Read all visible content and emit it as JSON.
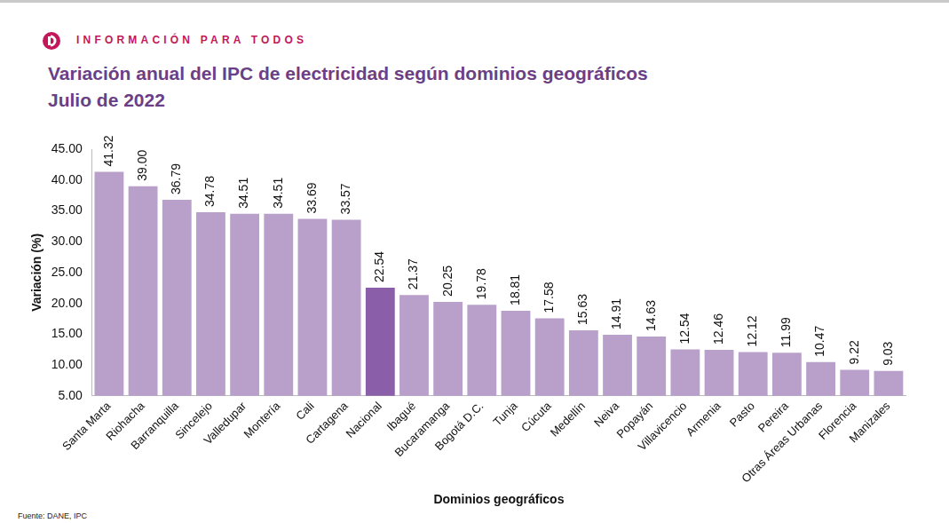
{
  "header": "INFORMACIÓN PARA TODOS",
  "source": "Fuente: DANE, IPC",
  "chart_data": {
    "type": "bar",
    "title": "Variación anual del IPC de electricidad según dominios geográficos",
    "subtitle": "Julio de 2022",
    "x_label": "Dominios geográficos",
    "y_label": "Variación (%)",
    "categories": [
      "Santa Marta",
      "Riohacha",
      "Barranquilla",
      "Sincelejo",
      "Valledupar",
      "Montería",
      "Cali",
      "Cartagena",
      "Nacional",
      "Ibagué",
      "Bucaramanga",
      "Bogotá D.C.",
      "Tunja",
      "Cúcuta",
      "Medellín",
      "Neiva",
      "Popayán",
      "Villavicencio",
      "Armenia",
      "Pasto",
      "Pereira",
      "Otras Áreas Urbanas",
      "Florencia",
      "Manizales"
    ],
    "values": [
      41.32,
      39.0,
      36.79,
      34.78,
      34.51,
      34.51,
      33.69,
      33.57,
      22.54,
      21.37,
      20.25,
      19.78,
      18.81,
      17.58,
      15.63,
      14.91,
      14.63,
      12.54,
      12.46,
      12.12,
      11.99,
      10.47,
      9.22,
      9.03
    ],
    "value_labels": [
      "41.32",
      "39.00",
      "36.79",
      "34.78",
      "34.51",
      "34.51",
      "33.69",
      "33.57",
      "22.54",
      "21.37",
      "20.25",
      "19.78",
      "18.81",
      "17.58",
      "15.63",
      "14.91",
      "14.63",
      "12.54",
      "12.46",
      "12.12",
      "11.99",
      "10.47",
      "9.22",
      "9.03"
    ],
    "colors": [
      "#b9a0cb",
      "#b9a0cb",
      "#b9a0cb",
      "#b9a0cb",
      "#b9a0cb",
      "#b9a0cb",
      "#b9a0cb",
      "#b9a0cb",
      "#8a5ea8",
      "#b9a0cb",
      "#b9a0cb",
      "#b9a0cb",
      "#b9a0cb",
      "#b9a0cb",
      "#b9a0cb",
      "#b9a0cb",
      "#b9a0cb",
      "#b9a0cb",
      "#b9a0cb",
      "#b9a0cb",
      "#b9a0cb",
      "#b9a0cb",
      "#b9a0cb",
      "#b9a0cb"
    ],
    "ylim": [
      5,
      45
    ],
    "yticks": [
      {
        "value": 5,
        "label": "5.00"
      },
      {
        "value": 10,
        "label": "10.00"
      },
      {
        "value": 15,
        "label": "15.00"
      },
      {
        "value": 20,
        "label": "20.00"
      },
      {
        "value": 25,
        "label": "25.00"
      },
      {
        "value": 30,
        "label": "30.00"
      },
      {
        "value": 35,
        "label": "35.00"
      },
      {
        "value": 40,
        "label": "40.00"
      },
      {
        "value": 45,
        "label": "45.00"
      }
    ],
    "grid": false,
    "data_labels": true
  }
}
